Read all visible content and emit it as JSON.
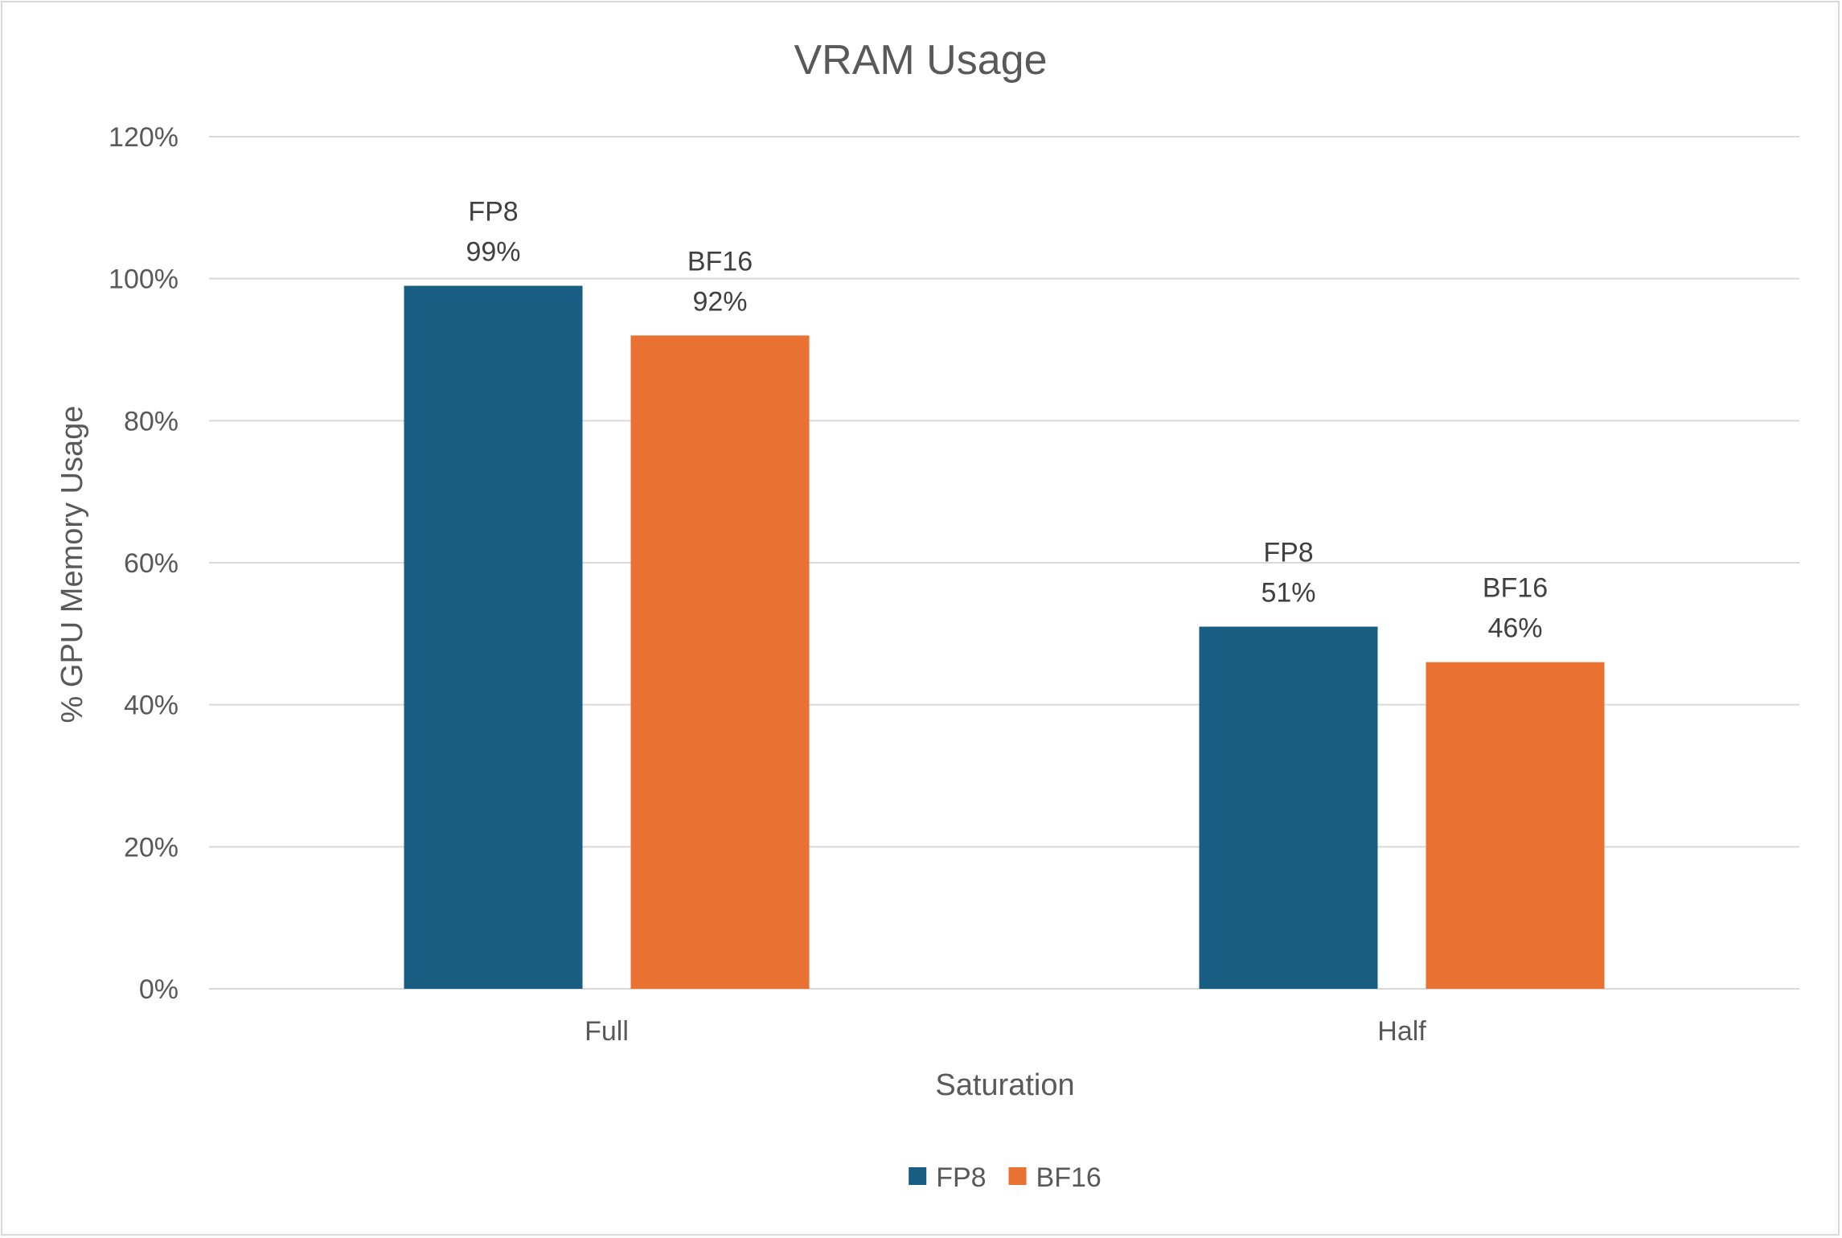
{
  "chart_data": {
    "type": "bar",
    "title": "VRAM Usage",
    "xlabel": "Saturation",
    "ylabel": "% GPU Memory Usage",
    "categories": [
      "Full",
      "Half"
    ],
    "series": [
      {
        "name": "FP8",
        "values": [
          0.99,
          0.51
        ],
        "labels": [
          "99%",
          "51%"
        ],
        "color": "#175e82"
      },
      {
        "name": "BF16",
        "values": [
          0.92,
          0.46
        ],
        "labels": [
          "92%",
          "46%"
        ],
        "color": "#e97132"
      }
    ],
    "ylim": [
      0,
      1.2
    ],
    "yticks": [
      0,
      0.2,
      0.4,
      0.6,
      0.8,
      1.0,
      1.2
    ],
    "ytick_labels": [
      "0%",
      "20%",
      "40%",
      "60%",
      "80%",
      "100%",
      "120%"
    ],
    "grid": true,
    "legend": "bottom"
  },
  "colors": {
    "grid": "#d9d9d9",
    "text": "#595959",
    "label": "#404040"
  }
}
